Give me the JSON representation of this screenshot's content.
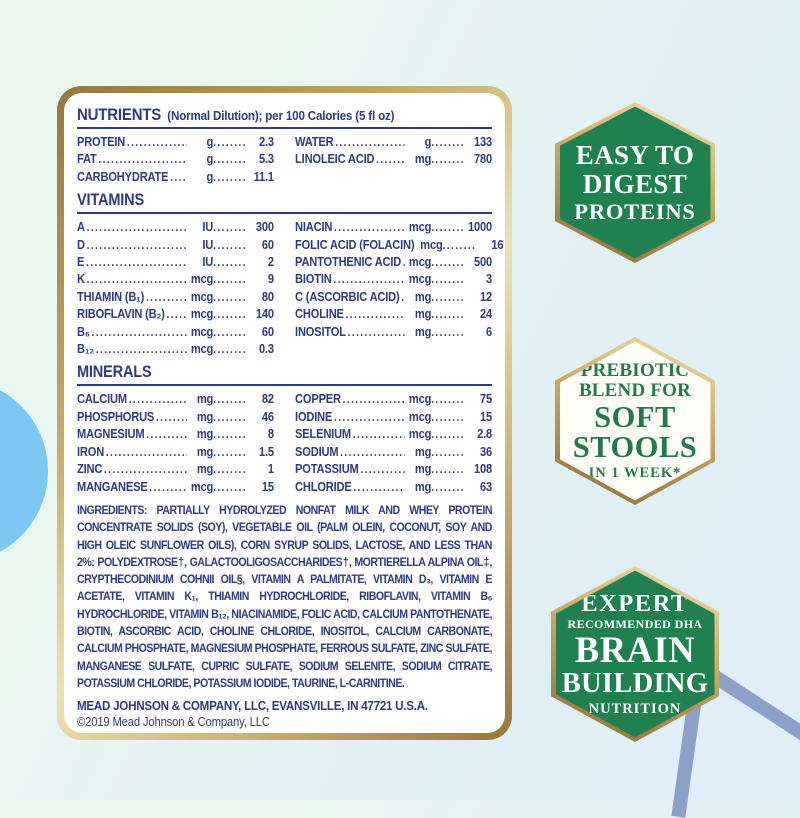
{
  "colors": {
    "navy": "#2b3a8c",
    "badge_green": "#1f8150",
    "badge_text_white": "#ffffff",
    "badge_text_green": "#1e7c4c",
    "gold_dark": "#97763a",
    "gold_light": "#eee1b2",
    "sky_circle": "#7cc7f4",
    "slate_bar": "#8ca0c8",
    "bg_mint": "#e9f6f0",
    "bg_blue": "#dfeef7"
  },
  "label": {
    "nutrients": {
      "heading": "NUTRIENTS",
      "note": "(Normal Dilution); per 100 Calories (5 fl oz)",
      "left": [
        {
          "name": "PROTEIN",
          "unit": "g",
          "value": "2.3"
        },
        {
          "name": "FAT",
          "unit": "g",
          "value": "5.3"
        },
        {
          "name": "CARBOHYDRATE",
          "unit": "g",
          "value": "11.1"
        }
      ],
      "right": [
        {
          "name": "WATER",
          "unit": "g",
          "value": "133"
        },
        {
          "name": "LINOLEIC ACID",
          "unit": "mg",
          "value": "780"
        }
      ]
    },
    "vitamins": {
      "heading": "VITAMINS",
      "left": [
        {
          "name": "A",
          "unit": "IU",
          "value": "300"
        },
        {
          "name": "D",
          "unit": "IU",
          "value": "60"
        },
        {
          "name": "E",
          "unit": "IU",
          "value": "2"
        },
        {
          "name": "K",
          "unit": "mcg",
          "value": "9"
        },
        {
          "name": "THIAMIN (B₁)",
          "unit": "mcg",
          "value": "80"
        },
        {
          "name": "RIBOFLAVIN (B₂)",
          "unit": "mcg",
          "value": "140"
        },
        {
          "name": "B₆",
          "unit": "mcg",
          "value": "60"
        },
        {
          "name": "B₁₂",
          "unit": "mcg",
          "value": "0.3"
        }
      ],
      "right": [
        {
          "name": "NIACIN",
          "unit": "mcg",
          "value": "1000"
        },
        {
          "name": "FOLIC ACID (FOLACIN)",
          "unit": "mcg",
          "value": "16"
        },
        {
          "name": "PANTOTHENIC ACID",
          "unit": "mcg",
          "value": "500"
        },
        {
          "name": "BIOTIN",
          "unit": "mcg",
          "value": "3"
        },
        {
          "name": "C (ASCORBIC ACID)",
          "unit": "mg",
          "value": "12"
        },
        {
          "name": "CHOLINE",
          "unit": "mg",
          "value": "24"
        },
        {
          "name": "INOSITOL",
          "unit": "mg",
          "value": "6"
        }
      ]
    },
    "minerals": {
      "heading": "MINERALS",
      "left": [
        {
          "name": "CALCIUM",
          "unit": "mg",
          "value": "82"
        },
        {
          "name": "PHOSPHORUS",
          "unit": "mg",
          "value": "46"
        },
        {
          "name": "MAGNESIUM",
          "unit": "mg",
          "value": "8"
        },
        {
          "name": "IRON",
          "unit": "mg",
          "value": "1.5"
        },
        {
          "name": "ZINC",
          "unit": "mg",
          "value": "1"
        },
        {
          "name": "MANGANESE",
          "unit": "mcg",
          "value": "15"
        }
      ],
      "right": [
        {
          "name": "COPPER",
          "unit": "mcg",
          "value": "75"
        },
        {
          "name": "IODINE",
          "unit": "mcg",
          "value": "15"
        },
        {
          "name": "SELENIUM",
          "unit": "mcg",
          "value": "2.8"
        },
        {
          "name": "SODIUM",
          "unit": "mg",
          "value": "36"
        },
        {
          "name": "POTASSIUM",
          "unit": "mg",
          "value": "108"
        },
        {
          "name": "CHLORIDE",
          "unit": "mg",
          "value": "63"
        }
      ]
    },
    "ingredients_label": "INGREDIENTS:",
    "ingredients_text": " PARTIALLY HYDROLYZED NONFAT MILK AND WHEY PROTEIN CONCENTRATE SOLIDS (SOY), VEGETABLE OIL (PALM OLEIN, COCONUT, SOY AND HIGH OLEIC SUNFLOWER OILS), CORN SYRUP SOLIDS, LACTOSE, AND LESS THAN 2%: POLYDEXTROSE†, GALACTOOLIGOSACCHARIDES†, MORTIERELLA ALPINA OIL‡, CRYPTHECODINIUM COHNII OIL§, VITAMIN A PALMITATE, VITAMIN D₃, VITAMIN E ACETATE, VITAMIN K₁, THIAMIN HYDROCHLORIDE, RIBOFLAVIN, VITAMIN B₆ HYDROCHLORIDE, VITAMIN B₁₂, NIACINAMIDE, FOLIC ACID, CALCIUM PANTOTHENATE, BIOTIN, ASCORBIC ACID, CHOLINE CHLORIDE, INOSITOL, CALCIUM CARBONATE, CALCIUM PHOSPHATE, MAGNESIUM PHOSPHATE, FERROUS SULFATE, ZINC SULFATE, MANGANESE SULFATE, CUPRIC SULFATE, SODIUM SELENITE, SODIUM CITRATE, POTASSIUM CHLORIDE, POTASSIUM IODIDE, TAURINE, L-CARNITINE.",
    "company_line": "MEAD JOHNSON & COMPANY, LLC, EVANSVILLE, IN 47721 U.S.A.",
    "copyright_line": "©2019 Mead Johnson & Company, LLC"
  },
  "badges": [
    {
      "id": "easy-to-digest-proteins",
      "style": "green",
      "lines": [
        {
          "text": "EASY TO",
          "size": "27"
        },
        {
          "text": "DIGEST",
          "size": "27"
        },
        {
          "text": "PROTEINS",
          "size": "23"
        }
      ]
    },
    {
      "id": "prebiotic-soft-stools",
      "style": "white",
      "lines": [
        {
          "text": "PREBIOTIC",
          "size": "19"
        },
        {
          "text": "BLEND FOR",
          "size": "19"
        },
        {
          "text": "SOFT",
          "size": "31"
        },
        {
          "text": "STOOLS",
          "size": "31"
        },
        {
          "text": "IN 1 WEEK*",
          "size": "15"
        }
      ]
    },
    {
      "id": "brain-building-nutrition",
      "style": "green",
      "lines": [
        {
          "text": "EXPERT",
          "size": "25"
        },
        {
          "text": "RECOMMENDED DHA",
          "size": "12"
        },
        {
          "text": "BRAIN",
          "size": "37"
        },
        {
          "text": "BUILDING",
          "size": "29"
        },
        {
          "text": "NUTRITION",
          "size": "15"
        }
      ]
    }
  ]
}
